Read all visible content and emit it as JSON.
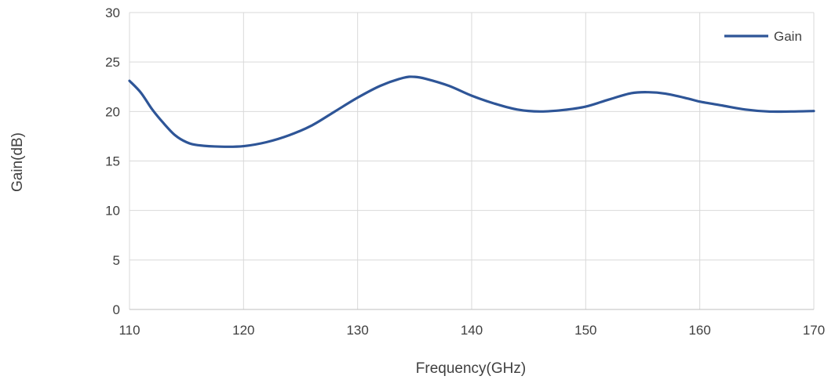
{
  "chart_data": {
    "type": "line",
    "title": "",
    "xlabel": "Frequency(GHz)",
    "ylabel": "Gain(dB)",
    "xlim": [
      110,
      170
    ],
    "ylim": [
      0,
      30
    ],
    "x_ticks": [
      110,
      120,
      130,
      140,
      150,
      160,
      170
    ],
    "y_ticks": [
      0,
      5,
      10,
      15,
      20,
      25,
      30
    ],
    "x_tick_labels": [
      "110",
      "120",
      "130",
      "140",
      "150",
      "160",
      "170"
    ],
    "y_tick_labels": [
      "0",
      "5",
      "10",
      "15",
      "20",
      "25",
      "30"
    ],
    "grid": true,
    "legend_position": "top-right",
    "series": [
      {
        "name": "Gain",
        "color": "#2e5597",
        "x": [
          110,
          111,
          112,
          113,
          114,
          115,
          116,
          118,
          120,
          122,
          124,
          126,
          128,
          130,
          132,
          134,
          135,
          136,
          138,
          140,
          142,
          144,
          146,
          148,
          150,
          152,
          154,
          155.5,
          157,
          159,
          160,
          162,
          164,
          166,
          168,
          170
        ],
        "y": [
          23.1,
          21.9,
          20.2,
          18.8,
          17.6,
          16.9,
          16.6,
          16.45,
          16.5,
          16.9,
          17.6,
          18.6,
          20.0,
          21.4,
          22.6,
          23.4,
          23.5,
          23.3,
          22.6,
          21.6,
          20.8,
          20.2,
          20.0,
          20.15,
          20.5,
          21.2,
          21.85,
          21.95,
          21.8,
          21.3,
          21.0,
          20.6,
          20.2,
          20.0,
          20.0,
          20.05
        ]
      }
    ]
  }
}
